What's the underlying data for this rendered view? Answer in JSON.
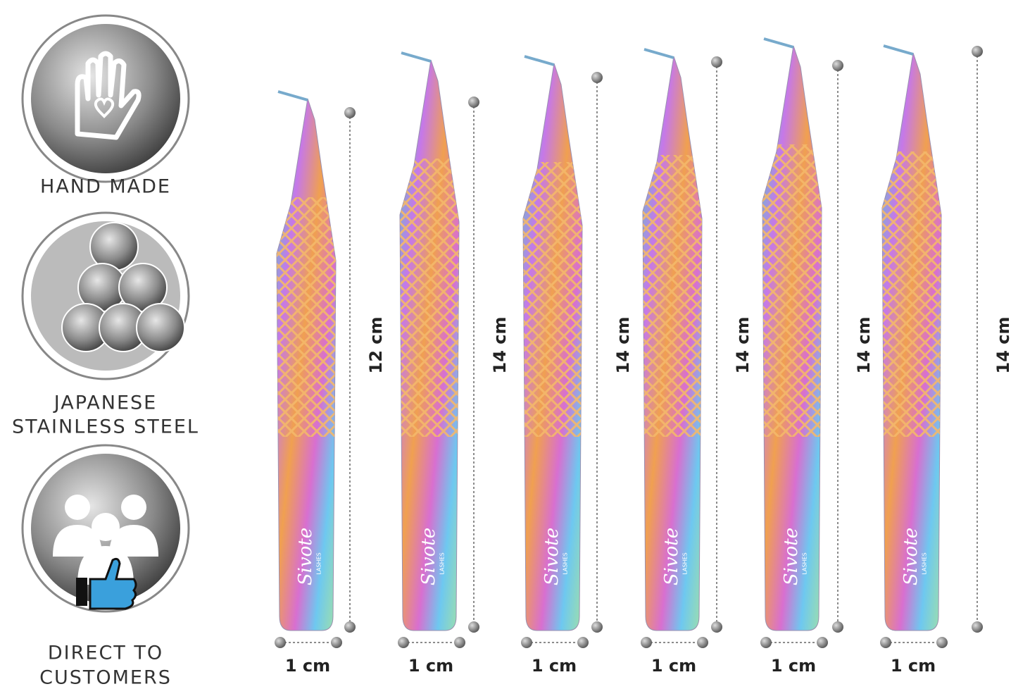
{
  "features": [
    {
      "lines": [
        "HAND MADE"
      ]
    },
    {
      "lines": [
        "JAPANESE",
        "STAINLESS STEEL"
      ]
    },
    {
      "lines": [
        "DIRECT TO",
        "CUSTOMERS"
      ]
    }
  ],
  "brand": "Sivote",
  "brand_sub": "LASHES",
  "tweezers": [
    {
      "length": "12 cm",
      "width": "1 cm"
    },
    {
      "length": "14 cm",
      "width": "1 cm"
    },
    {
      "length": "14 cm",
      "width": "1 cm"
    },
    {
      "length": "14 cm",
      "width": "1 cm"
    },
    {
      "length": "14 cm",
      "width": "1 cm"
    },
    {
      "length": "14 cm",
      "width": "1 cm"
    }
  ]
}
